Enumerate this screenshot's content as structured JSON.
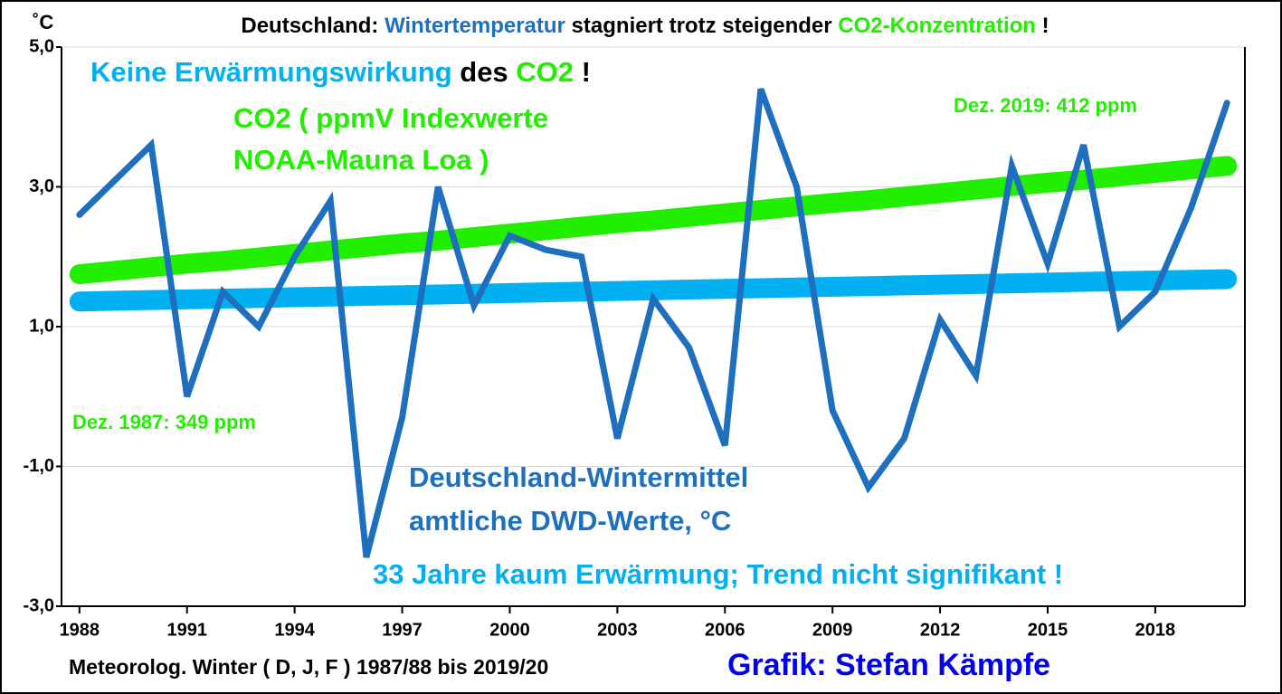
{
  "chart_data": {
    "type": "line",
    "title": [
      {
        "text": "Deutschland: ",
        "color": "#000000"
      },
      {
        "text": "Wintertemperatur",
        "color": "#1f6fbf"
      },
      {
        "text": " stagniert trotz steigender ",
        "color": "#000000"
      },
      {
        "text": "CO2-Konzentration",
        "color": "#22ee00"
      },
      {
        "text": " !",
        "color": "#000000"
      }
    ],
    "y_unit": "˚C",
    "x_label": "Meteorolog. Winter ( D, J, F ) 1987/88 bis 2019/20",
    "credit": {
      "text": "Grafik: Stefan Kämpfe",
      "color": "#0000ee"
    },
    "annotations": [
      [
        {
          "text": "Keine Erwärmungswirkung",
          "color": "#00b0f0"
        },
        {
          "text": " des ",
          "color": "#000000"
        },
        {
          "text": "CO2",
          "color": "#22ee00"
        },
        {
          "text": " !",
          "color": "#000000"
        }
      ],
      [
        {
          "text": "CO2 ( ppmV Indexwerte",
          "color": "#22ee00"
        }
      ],
      [
        {
          "text": "NOAA-Mauna Loa )",
          "color": "#22ee00"
        }
      ],
      [
        {
          "text": "Dez. 2019: 412 ppm",
          "color": "#22ee00"
        }
      ],
      [
        {
          "text": "Dez. 1987: 349 ppm",
          "color": "#22ee00"
        }
      ],
      [
        {
          "text": "Deutschland-Wintermittel",
          "color": "#1f6fbf"
        }
      ],
      [
        {
          "text": "amtliche DWD-Werte, °C",
          "color": "#1f6fbf"
        }
      ],
      [
        {
          "text": "33 Jahre kaum Erwärmung; Trend nicht signifikant !",
          "color": "#00b0f0"
        }
      ]
    ],
    "x": [
      1988,
      1989,
      1990,
      1991,
      1992,
      1993,
      1994,
      1995,
      1996,
      1997,
      1998,
      1999,
      2000,
      2001,
      2002,
      2003,
      2004,
      2005,
      2006,
      2007,
      2008,
      2009,
      2010,
      2011,
      2012,
      2013,
      2014,
      2015,
      2016,
      2017,
      2018,
      2019,
      2020
    ],
    "series": [
      {
        "color": "#22ee00",
        "width": 22,
        "values": [
          1.75,
          1.8,
          1.85,
          1.9,
          1.94,
          1.99,
          2.04,
          2.09,
          2.14,
          2.19,
          2.23,
          2.28,
          2.33,
          2.38,
          2.43,
          2.48,
          2.52,
          2.57,
          2.62,
          2.67,
          2.72,
          2.77,
          2.81,
          2.86,
          2.91,
          2.96,
          3.01,
          3.06,
          3.1,
          3.15,
          3.2,
          3.25,
          3.3
        ]
      },
      {
        "color": "#00b0f0",
        "width": 22,
        "values": [
          1.36,
          1.37,
          1.38,
          1.39,
          1.4,
          1.41,
          1.42,
          1.43,
          1.44,
          1.45,
          1.46,
          1.47,
          1.48,
          1.49,
          1.5,
          1.51,
          1.52,
          1.53,
          1.54,
          1.55,
          1.56,
          1.57,
          1.58,
          1.59,
          1.6,
          1.61,
          1.62,
          1.63,
          1.64,
          1.65,
          1.66,
          1.67,
          1.68
        ]
      },
      {
        "color": "#1f6fbf",
        "width": 7,
        "values": [
          2.6,
          3.1,
          3.6,
          0.0,
          1.5,
          1.0,
          2.0,
          2.8,
          -2.3,
          -0.3,
          3.0,
          1.3,
          2.3,
          2.1,
          2.0,
          -0.6,
          1.4,
          0.7,
          -0.7,
          4.4,
          3.0,
          -0.2,
          -1.3,
          -0.6,
          1.1,
          0.3,
          3.3,
          1.9,
          3.6,
          1.0,
          1.5,
          2.7,
          4.2
        ]
      }
    ],
    "xlim": [
      1987.5,
      2020.5
    ],
    "xticks": [
      1988,
      1991,
      1994,
      1997,
      2000,
      2003,
      2006,
      2009,
      2012,
      2015,
      2018
    ],
    "ylim": [
      -3,
      5
    ],
    "yticks": [
      {
        "value": 5,
        "label": "5,0"
      },
      {
        "value": 3,
        "label": "3,0"
      },
      {
        "value": 1,
        "label": "1,0"
      },
      {
        "value": -1,
        "label": "-1,0"
      },
      {
        "value": -3,
        "label": "-3,0"
      }
    ],
    "grid": true
  }
}
